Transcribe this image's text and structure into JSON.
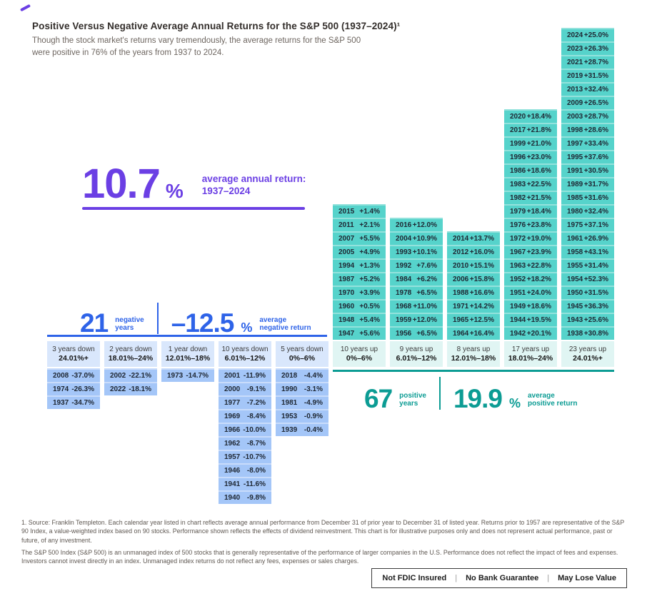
{
  "header": {
    "title": "Positive Versus Negative Average Annual Returns for the S&P 500 (1937–2024)¹",
    "subtitle": "Though the stock market's returns vary tremendously, the average returns for the S&P 500 were positive in 76% of the years from 1937 to 2024."
  },
  "callouts": {
    "overall": {
      "value": "10.7",
      "pct": "%",
      "label_line1": "average annual return:",
      "label_line2": "1937–2024",
      "color": "#6b3fe4"
    },
    "negative": {
      "count": "21",
      "count_label1": "negative",
      "count_label2": "years",
      "avg": "–12.5",
      "pct": "%",
      "avg_label1": "average",
      "avg_label2": "negative return",
      "color": "#2e63e8"
    },
    "positive": {
      "count": "67",
      "count_label1": "positive",
      "count_label2": "years",
      "avg": "19.9",
      "pct": "%",
      "avg_label1": "average",
      "avg_label2": "positive return",
      "color": "#0c9c94"
    }
  },
  "chart_data": {
    "type": "histogram-table",
    "title": "Positive Versus Negative Average Annual Returns for the S&P 500 (1937–2024)",
    "summary": {
      "average_annual_return_pct": 10.7,
      "negative_years": 21,
      "average_negative_return_pct": -12.5,
      "positive_years": 67,
      "average_positive_return_pct": 19.9,
      "period": "1937–2024",
      "positive_share_pct": 76
    },
    "colors": {
      "negative_cell": "#a4c6f8",
      "positive_cell": "#56d3cb",
      "negative_accent": "#2e63e8",
      "positive_accent": "#0c9c94",
      "overall_accent": "#6b3fe4"
    },
    "columns": [
      {
        "side": "negative",
        "label": "3 years down",
        "range": "24.01%+",
        "years": [
          [
            "2008",
            "-37.0%"
          ],
          [
            "1974",
            "-26.3%"
          ],
          [
            "1937",
            "-34.7%"
          ]
        ]
      },
      {
        "side": "negative",
        "label": "2 years down",
        "range": "18.01%–24%",
        "years": [
          [
            "2002",
            "-22.1%"
          ],
          [
            "2022",
            "-18.1%"
          ]
        ]
      },
      {
        "side": "negative",
        "label": "1 year down",
        "range": "12.01%–18%",
        "years": [
          [
            "1973",
            "-14.7%"
          ]
        ]
      },
      {
        "side": "negative",
        "label": "10 years down",
        "range": "6.01%–12%",
        "years": [
          [
            "2001",
            "-11.9%"
          ],
          [
            "2000",
            "-9.1%"
          ],
          [
            "1977",
            "-7.2%"
          ],
          [
            "1969",
            "-8.4%"
          ],
          [
            "1966",
            "-10.0%"
          ],
          [
            "1962",
            "-8.7%"
          ],
          [
            "1957",
            "-10.7%"
          ],
          [
            "1946",
            "-8.0%"
          ],
          [
            "1941",
            "-11.6%"
          ],
          [
            "1940",
            "-9.8%"
          ]
        ]
      },
      {
        "side": "negative",
        "label": "5 years down",
        "range": "0%–6%",
        "years": [
          [
            "2018",
            "-4.4%"
          ],
          [
            "1990",
            "-3.1%"
          ],
          [
            "1981",
            "-4.9%"
          ],
          [
            "1953",
            "-0.9%"
          ],
          [
            "1939",
            "-0.4%"
          ]
        ]
      },
      {
        "side": "positive",
        "label": "10 years up",
        "range": "0%–6%",
        "years": [
          [
            "2015",
            "+1.4%"
          ],
          [
            "2011",
            "+2.1%"
          ],
          [
            "2007",
            "+5.5%"
          ],
          [
            "2005",
            "+4.9%"
          ],
          [
            "1994",
            "+1.3%"
          ],
          [
            "1987",
            "+5.2%"
          ],
          [
            "1970",
            "+3.9%"
          ],
          [
            "1960",
            "+0.5%"
          ],
          [
            "1948",
            "+5.4%"
          ],
          [
            "1947",
            "+5.6%"
          ]
        ]
      },
      {
        "side": "positive",
        "label": "9 years up",
        "range": "6.01%–12%",
        "years": [
          [
            "2016",
            "+12.0%"
          ],
          [
            "2004",
            "+10.9%"
          ],
          [
            "1993",
            "+10.1%"
          ],
          [
            "1992",
            "+7.6%"
          ],
          [
            "1984",
            "+6.2%"
          ],
          [
            "1978",
            "+6.5%"
          ],
          [
            "1968",
            "+11.0%"
          ],
          [
            "1959",
            "+12.0%"
          ],
          [
            "1956",
            "+6.5%"
          ]
        ]
      },
      {
        "side": "positive",
        "label": "8 years up",
        "range": "12.01%–18%",
        "years": [
          [
            "2014",
            "+13.7%"
          ],
          [
            "2012",
            "+16.0%"
          ],
          [
            "2010",
            "+15.1%"
          ],
          [
            "2006",
            "+15.8%"
          ],
          [
            "1988",
            "+16.6%"
          ],
          [
            "1971",
            "+14.2%"
          ],
          [
            "1965",
            "+12.5%"
          ],
          [
            "1964",
            "+16.4%"
          ]
        ]
      },
      {
        "side": "positive",
        "label": "17 years up",
        "range": "18.01%–24%",
        "years": [
          [
            "2020",
            "+18.4%"
          ],
          [
            "2017",
            "+21.8%"
          ],
          [
            "1999",
            "+21.0%"
          ],
          [
            "1996",
            "+23.0%"
          ],
          [
            "1986",
            "+18.6%"
          ],
          [
            "1983",
            "+22.5%"
          ],
          [
            "1982",
            "+21.5%"
          ],
          [
            "1979",
            "+18.4%"
          ],
          [
            "1976",
            "+23.8%"
          ],
          [
            "1972",
            "+19.0%"
          ],
          [
            "1967",
            "+23.9%"
          ],
          [
            "1963",
            "+22.8%"
          ],
          [
            "1952",
            "+18.2%"
          ],
          [
            "1951",
            "+24.0%"
          ],
          [
            "1949",
            "+18.6%"
          ],
          [
            "1944",
            "+19.5%"
          ],
          [
            "1942",
            "+20.1%"
          ]
        ]
      },
      {
        "side": "positive",
        "label": "23 years up",
        "range": "24.01%+",
        "years": [
          [
            "2024",
            "+25.0%"
          ],
          [
            "2023",
            "+26.3%"
          ],
          [
            "2021",
            "+28.7%"
          ],
          [
            "2019",
            "+31.5%"
          ],
          [
            "2013",
            "+32.4%"
          ],
          [
            "2009",
            "+26.5%"
          ],
          [
            "2003",
            "+28.7%"
          ],
          [
            "1998",
            "+28.6%"
          ],
          [
            "1997",
            "+33.4%"
          ],
          [
            "1995",
            "+37.6%"
          ],
          [
            "1991",
            "+30.5%"
          ],
          [
            "1989",
            "+31.7%"
          ],
          [
            "1985",
            "+31.6%"
          ],
          [
            "1980",
            "+32.4%"
          ],
          [
            "1975",
            "+37.1%"
          ],
          [
            "1961",
            "+26.9%"
          ],
          [
            "1958",
            "+43.1%"
          ],
          [
            "1955",
            "+31.4%"
          ],
          [
            "1954",
            "+52.3%"
          ],
          [
            "1950",
            "+31.5%"
          ],
          [
            "1945",
            "+36.3%"
          ],
          [
            "1943",
            "+25.6%"
          ],
          [
            "1938",
            "+30.8%"
          ]
        ]
      }
    ]
  },
  "footnotes": [
    "1. Source: Franklin Templeton. Each calendar year listed in chart reflects average annual performance from December 31 of prior year to December 31 of listed year. Returns prior to 1957 are representative of the S&P 90 Index, a value-weighted index based on 90 stocks. Performance shown reflects the effects of dividend reinvestment. This chart is for illustrative purposes only and does not represent actual performance, past or future, of any investment.",
    "The S&P 500 Index (S&P 500) is an unmanaged index of 500 stocks that is generally representative of the performance of larger companies in the U.S. Performance does not reflect the impact of fees and expenses. Investors cannot invest directly in an index. Unmanaged index returns do not reflect any fees, expenses or sales charges."
  ],
  "disclaimer": {
    "items": [
      "Not FDIC Insured",
      "No Bank Guarantee",
      "May Lose Value"
    ]
  }
}
